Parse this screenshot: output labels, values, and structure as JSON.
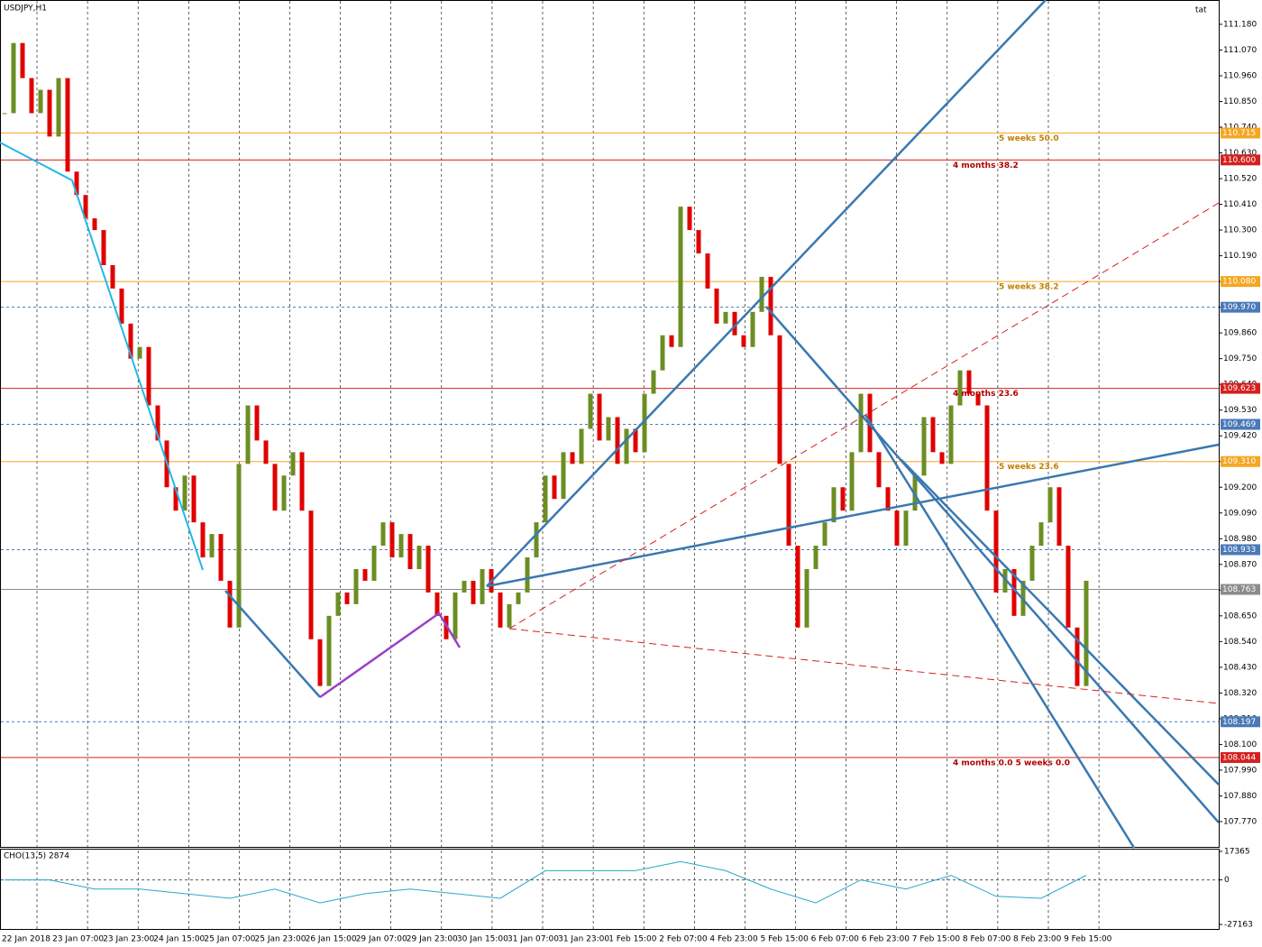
{
  "chart_data": {
    "type": "candlestick",
    "title": "USDJPY,H1",
    "corner_text": "tat",
    "closes": [
      110.8,
      111.1,
      110.95,
      110.8,
      110.9,
      110.7,
      110.95,
      110.55,
      110.45,
      110.35,
      110.3,
      110.15,
      110.05,
      109.9,
      109.75,
      109.8,
      109.55,
      109.4,
      109.2,
      109.1,
      109.25,
      109.05,
      108.9,
      109.0,
      108.8,
      108.6,
      109.3,
      109.55,
      109.4,
      109.3,
      109.1,
      109.25,
      109.35,
      109.1,
      108.55,
      108.35,
      108.65,
      108.75,
      108.7,
      108.85,
      108.8,
      108.95,
      109.05,
      108.9,
      109.0,
      108.85,
      108.95,
      108.75,
      108.65,
      108.55,
      108.75,
      108.8,
      108.7,
      108.85,
      108.75,
      108.6,
      108.7,
      108.75,
      108.9,
      109.05,
      109.25,
      109.15,
      109.35,
      109.3,
      109.45,
      109.6,
      109.4,
      109.5,
      109.3,
      109.45,
      109.35,
      109.6,
      109.7,
      109.85,
      109.8,
      110.4,
      110.3,
      110.2,
      110.05,
      109.9,
      109.95,
      109.85,
      109.8,
      109.95,
      110.1,
      109.85,
      109.3,
      108.95,
      108.6,
      108.85,
      108.95,
      109.05,
      109.2,
      109.1,
      109.35,
      109.6,
      109.35,
      109.2,
      109.1,
      108.95,
      109.1,
      109.25,
      109.5,
      109.35,
      109.3,
      109.55,
      109.7,
      109.6,
      109.55,
      109.1,
      108.75,
      108.85,
      108.65,
      108.8,
      108.95,
      109.05,
      109.2,
      108.95,
      108.6,
      108.35,
      108.8
    ],
    "up_color": "#6b8e23",
    "down_color": "#e00000",
    "ylim": [
      107.658,
      111.284
    ],
    "yticks": [
      {
        "value": 111.18,
        "label": "111.180"
      },
      {
        "value": 111.07,
        "label": "111.070"
      },
      {
        "value": 110.96,
        "label": "110.960"
      },
      {
        "value": 110.85,
        "label": "110.850"
      },
      {
        "value": 110.74,
        "label": "110.740"
      },
      {
        "value": 110.63,
        "label": "110.630"
      },
      {
        "value": 110.52,
        "label": "110.520"
      },
      {
        "value": 110.41,
        "label": "110.410"
      },
      {
        "value": 110.3,
        "label": "110.300"
      },
      {
        "value": 110.19,
        "label": "110.190"
      },
      {
        "value": 110.08,
        "label": "110.080"
      },
      {
        "value": 109.97,
        "label": "109.970"
      },
      {
        "value": 109.86,
        "label": "109.860"
      },
      {
        "value": 109.75,
        "label": "109.750"
      },
      {
        "value": 109.64,
        "label": "109.640"
      },
      {
        "value": 109.53,
        "label": "109.530"
      },
      {
        "value": 109.42,
        "label": "109.420"
      },
      {
        "value": 109.31,
        "label": "109.310"
      },
      {
        "value": 109.2,
        "label": "109.200"
      },
      {
        "value": 109.09,
        "label": "109.090"
      },
      {
        "value": 108.98,
        "label": "108.980"
      },
      {
        "value": 108.87,
        "label": "108.870"
      },
      {
        "value": 108.76,
        "label": "108.760"
      },
      {
        "value": 108.65,
        "label": "108.650"
      },
      {
        "value": 108.54,
        "label": "108.540"
      },
      {
        "value": 108.43,
        "label": "108.430"
      },
      {
        "value": 108.32,
        "label": "108.320"
      },
      {
        "value": 108.21,
        "label": "108.210"
      },
      {
        "value": 108.1,
        "label": "108.100"
      },
      {
        "value": 107.99,
        "label": "107.990"
      },
      {
        "value": 107.88,
        "label": "107.880"
      },
      {
        "value": 107.77,
        "label": "107.770"
      }
    ],
    "levels": [
      {
        "value": 110.715,
        "label": "110.715",
        "color": "#f5a623",
        "dashed": false,
        "text": "5 weeks 50.0"
      },
      {
        "value": 110.6,
        "label": "110.600",
        "color": "#d42020",
        "dashed": false,
        "text": "4 months 38.2"
      },
      {
        "value": 110.08,
        "label": "110.080",
        "color": "#f5a623",
        "dashed": false,
        "text": "5 weeks 38.2"
      },
      {
        "value": 109.97,
        "label": "109.970",
        "color": "#4a7ab8",
        "dashed": true
      },
      {
        "value": 109.623,
        "label": "109.623",
        "color": "#d42020",
        "dashed": false,
        "text": "4 months 23.6"
      },
      {
        "value": 109.469,
        "label": "109.469",
        "color": "#4a7ab8",
        "dashed": true
      },
      {
        "value": 109.31,
        "label": "109.310",
        "color": "#f5a623",
        "dashed": false,
        "text": "5 weeks 23.6"
      },
      {
        "value": 108.933,
        "label": "108.933",
        "color": "#4a7ab8",
        "dashed": true
      },
      {
        "value": 108.763,
        "label": "108.763",
        "color": "#8c8c8c",
        "dashed": false
      },
      {
        "value": 108.197,
        "label": "108.197",
        "color": "#4a7ab8",
        "dashed": true
      },
      {
        "value": 108.044,
        "label": "108.044",
        "color": "#d42020",
        "dashed": false,
        "text": "4 months 0.0 5 weeks 0.0"
      }
    ],
    "time_labels": [
      "22 Jan 2018",
      "23 Jan 07:00",
      "23 Jan 23:00",
      "24 Jan 15:00",
      "25 Jan 07:00",
      "25 Jan 23:00",
      "26 Jan 15:00",
      "29 Jan 07:00",
      "29 Jan 23:00",
      "30 Jan 15:00",
      "31 Jan 07:00",
      "31 Jan 23:00",
      "1 Feb 15:00",
      "2 Feb 07:00",
      "4 Feb 23:00",
      "5 Feb 15:00",
      "6 Feb 07:00",
      "6 Feb 23:00",
      "7 Feb 15:00",
      "8 Feb 07:00",
      "8 Feb 23:00",
      "9 Feb 15:00"
    ],
    "indicator": {
      "title": "CHO(13,5) 2874",
      "color": "#2aa7c9",
      "values": [
        0,
        0,
        -5600,
        -5600,
        -8400,
        -11200,
        -5600,
        -14000,
        -8400,
        -5600,
        -8400,
        -11200,
        5600,
        5600,
        5600,
        11200,
        5600,
        -5600,
        -14000,
        0,
        -5600,
        2800,
        -10000,
        -11200,
        2800
      ],
      "ylim": [
        -27163,
        17365
      ],
      "yticks": [
        17365,
        0,
        -27163
      ]
    }
  }
}
